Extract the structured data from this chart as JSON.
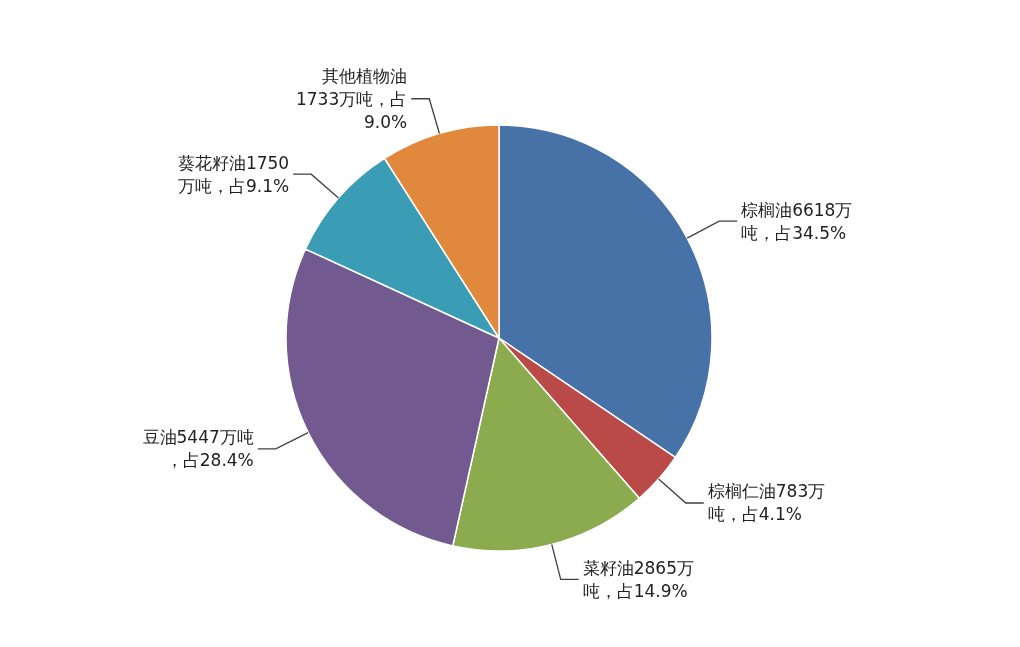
{
  "chart_data": {
    "type": "pie",
    "categories": [
      "棕榈油6618万吨，占34.5%",
      "棕榈仁油783万吨，占4.1%",
      "菜籽油2865万吨，占14.9%",
      "豆油5447万吨，占28.4%",
      "葵花籽油1750万吨，占9.1%",
      "其他植物油1733万吨，占9.0%"
    ],
    "values": [
      6618,
      783,
      2865,
      5447,
      1750,
      1733
    ],
    "colors": [
      "#4772a8",
      "#b94a47",
      "#8cab4f",
      "#725a91",
      "#3a9db5",
      "#e0893d"
    ],
    "legend": false
  }
}
